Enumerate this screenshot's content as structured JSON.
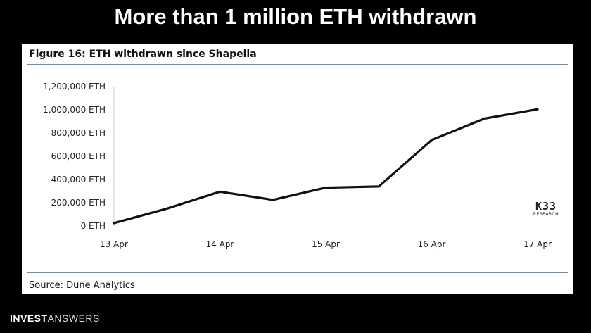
{
  "headline": "More than 1 million ETH withdrawn",
  "figure": {
    "title": "Figure 16: ETH withdrawn since Shapella",
    "source": "Source: Dune Analytics",
    "logo": {
      "main": "K33",
      "sub": "RESEARCH"
    }
  },
  "brand": {
    "part1": "INVEST",
    "part2": "ANSWERS"
  },
  "chart_data": {
    "type": "line",
    "title": "Figure 16: ETH withdrawn since Shapella",
    "xlabel": "",
    "ylabel": "",
    "x_ticks": [
      {
        "label": "13 Apr",
        "x": 0
      },
      {
        "label": "14 Apr",
        "x": 1
      },
      {
        "label": "15 Apr",
        "x": 2
      },
      {
        "label": "16 Apr",
        "x": 3
      },
      {
        "label": "17 Apr",
        "x": 4
      }
    ],
    "y_ticks": [
      "0 ETH",
      "200,000 ETH",
      "400,000 ETH",
      "600,000 ETH",
      "800,000 ETH",
      "1,000,000 ETH",
      "1,200,000 ETH"
    ],
    "y_tick_values": [
      0,
      200000,
      400000,
      600000,
      800000,
      1000000,
      1200000
    ],
    "ylim": [
      0,
      1200000
    ],
    "xlim": [
      0,
      4
    ],
    "grid": false,
    "line_color": "#111111",
    "series": [
      {
        "x": [
          0,
          0.5,
          1,
          1.5,
          2,
          2.5,
          3,
          3.5,
          4
        ],
        "values": [
          25000,
          150000,
          295000,
          225000,
          330000,
          340000,
          740000,
          925000,
          1005000
        ]
      }
    ]
  }
}
